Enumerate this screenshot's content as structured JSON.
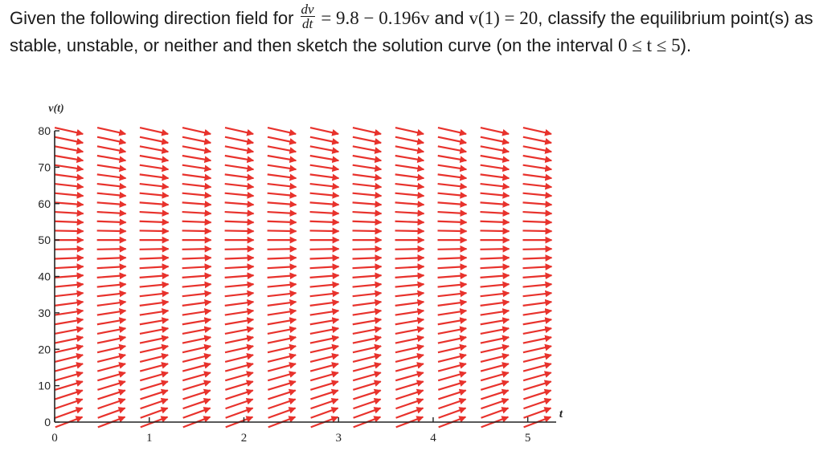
{
  "question": {
    "part1": "Given the following direction field for ",
    "frac_num": "dv",
    "frac_den": "dt",
    "equation_rhs": " = 9.8 − 0.196v",
    "part2": " and ",
    "initial_condition": "v(1) = 20",
    "part3": ", classify the equilibrium point(s) as stable, unstable, or neither and then sketch the solution curve (on the interval ",
    "interval": "0 ≤ t ≤ 5",
    "part4": ")."
  },
  "chart_data": {
    "type": "direction_field",
    "ylabel": "v(t)",
    "xlabel": "t",
    "x_ticks": [
      "0",
      "1",
      "2",
      "3",
      "4",
      "5"
    ],
    "y_ticks": [
      "0",
      "10",
      "20",
      "30",
      "40",
      "50",
      "60",
      "70",
      "80"
    ],
    "xlim": [
      0,
      5.3
    ],
    "ylim": [
      0,
      80
    ],
    "x_grid": [
      0.15,
      0.6,
      1.05,
      1.5,
      1.95,
      2.4,
      2.85,
      3.3,
      3.75,
      4.2,
      4.65,
      5.1
    ],
    "y_grid": [
      0,
      2.5,
      5,
      7.5,
      10,
      12.5,
      15,
      17.5,
      20,
      22.5,
      25,
      27.5,
      30,
      32.5,
      35,
      37.5,
      40,
      42.5,
      45,
      47.5,
      50,
      52.5,
      55,
      57.5,
      60,
      62.5,
      65,
      67.5,
      70,
      72.5,
      75,
      77.5,
      80
    ],
    "slope_function": "9.8 - 0.196*v",
    "arrow_color": "#e8322c",
    "axis_color": "#222222"
  }
}
